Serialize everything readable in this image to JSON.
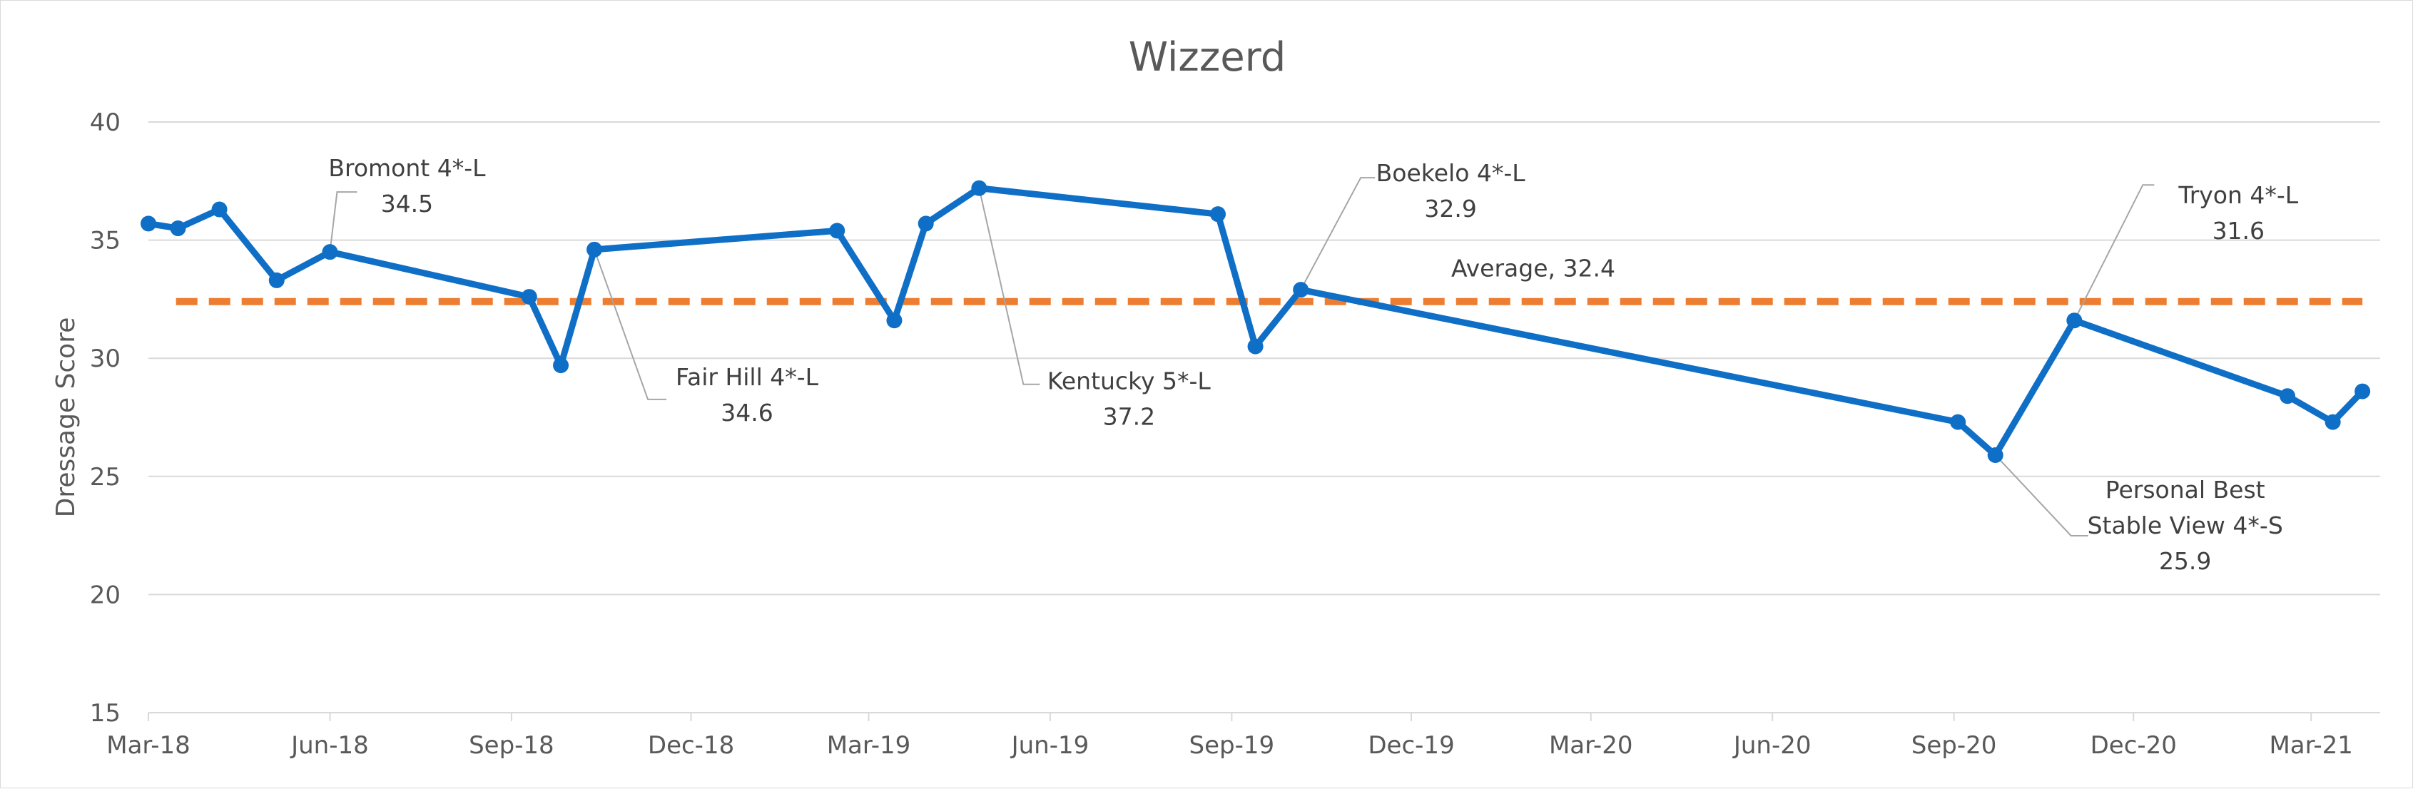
{
  "chart_data": {
    "type": "line",
    "title": "Wizzerd",
    "ylabel": "Dressage Score",
    "xlabel": "",
    "ylim": [
      15,
      40
    ],
    "yticks": [
      15,
      20,
      25,
      30,
      35,
      40
    ],
    "xlim": [
      "2018-03-01",
      "2021-04-05"
    ],
    "xticks": [
      {
        "date": "2018-03-01",
        "label": "Mar-18"
      },
      {
        "date": "2018-06-01",
        "label": "Jun-18"
      },
      {
        "date": "2018-09-01",
        "label": "Sep-18"
      },
      {
        "date": "2018-12-01",
        "label": "Dec-18"
      },
      {
        "date": "2019-03-01",
        "label": "Mar-19"
      },
      {
        "date": "2019-06-01",
        "label": "Jun-19"
      },
      {
        "date": "2019-09-01",
        "label": "Sep-19"
      },
      {
        "date": "2019-12-01",
        "label": "Dec-19"
      },
      {
        "date": "2020-03-01",
        "label": "Mar-20"
      },
      {
        "date": "2020-06-01",
        "label": "Jun-20"
      },
      {
        "date": "2020-09-01",
        "label": "Sep-20"
      },
      {
        "date": "2020-12-01",
        "label": "Dec-20"
      },
      {
        "date": "2021-03-01",
        "label": "Mar-21"
      }
    ],
    "grid": true,
    "legend": "none",
    "colors": {
      "series": "#0F6FC6",
      "average": "#ED7D31",
      "grid": "#D9D9D9",
      "leader": "#A6A6A6"
    },
    "series": [
      {
        "points": [
          {
            "x": "2018-03-01",
            "y": 35.7
          },
          {
            "x": "2018-03-16",
            "y": 35.5
          },
          {
            "x": "2018-04-06",
            "y": 36.3
          },
          {
            "x": "2018-05-05",
            "y": 33.3
          },
          {
            "x": "2018-06-01",
            "y": 34.5
          },
          {
            "x": "2018-09-10",
            "y": 32.6
          },
          {
            "x": "2018-09-26",
            "y": 29.7
          },
          {
            "x": "2018-10-13",
            "y": 34.6
          },
          {
            "x": "2019-02-13",
            "y": 35.4
          },
          {
            "x": "2019-03-14",
            "y": 31.6
          },
          {
            "x": "2019-03-30",
            "y": 35.7
          },
          {
            "x": "2019-04-26",
            "y": 37.2
          },
          {
            "x": "2019-08-25",
            "y": 36.1
          },
          {
            "x": "2019-09-13",
            "y": 30.5
          },
          {
            "x": "2019-10-06",
            "y": 32.9
          },
          {
            "x": "2020-09-03",
            "y": 27.3
          },
          {
            "x": "2020-09-22",
            "y": 25.9
          },
          {
            "x": "2020-11-01",
            "y": 31.6
          },
          {
            "x": "2021-02-17",
            "y": 28.4
          },
          {
            "x": "2021-03-12",
            "y": 27.3
          },
          {
            "x": "2021-03-27",
            "y": 28.6
          }
        ]
      }
    ],
    "average": {
      "value": 32.4,
      "label": "Average, 32.4",
      "x_range": [
        "2018-03-15",
        "2021-03-27"
      ]
    },
    "annotations": [
      {
        "point_index": 4,
        "lines": [
          "Bromont 4*-L",
          "34.5"
        ]
      },
      {
        "point_index": 7,
        "lines": [
          "Fair Hill 4*-L",
          "34.6"
        ]
      },
      {
        "point_index": 11,
        "lines": [
          "Kentucky 5*-L",
          "37.2"
        ]
      },
      {
        "point_index": 14,
        "lines": [
          "Boekelo 4*-L",
          "32.9"
        ]
      },
      {
        "point_index": 17,
        "lines": [
          "Tryon 4*-L",
          "31.6"
        ]
      },
      {
        "point_index": 16,
        "lines": [
          "Personal Best",
          "Stable View 4*-S",
          "25.9"
        ]
      }
    ]
  }
}
